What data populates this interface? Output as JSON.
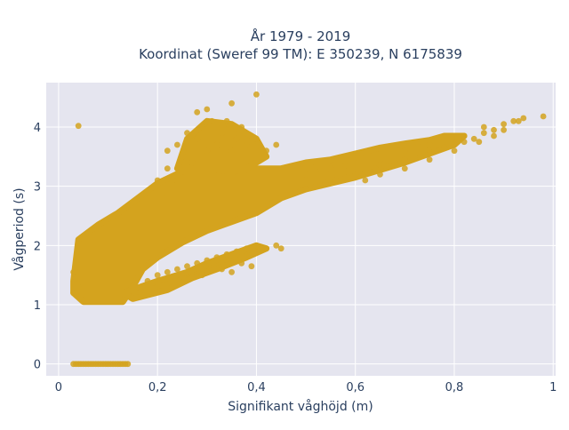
{
  "chart_data": {
    "type": "scatter",
    "title_line1": "År 1979 - 2019",
    "title_line2": "Koordinat (Sweref 99 TM): E 350239, N 6175839",
    "xlabel": "Signifikant våghöjd (m)",
    "ylabel": "Vågperiod (s)",
    "xlim": [
      -0.025,
      1.005
    ],
    "ylim": [
      -0.2,
      4.75
    ],
    "x_ticks": [
      0,
      0.2,
      0.4,
      0.6,
      0.8,
      1
    ],
    "x_tick_labels": [
      "0",
      "0,2",
      "0,4",
      "0,6",
      "0,8",
      "1"
    ],
    "y_ticks": [
      0,
      1,
      2,
      3,
      4
    ],
    "y_tick_labels": [
      "0",
      "1",
      "2",
      "3",
      "4"
    ],
    "grid": true,
    "colors": {
      "marker": "#d4a31e",
      "plot_bg": "#e5e5ef",
      "grid": "#ffffff",
      "text": "#2a3f5f"
    },
    "series": [
      {
        "points": [
          [
            0.03,
            0
          ],
          [
            0.035,
            0
          ],
          [
            0.04,
            0
          ],
          [
            0.045,
            0
          ],
          [
            0.05,
            0
          ],
          [
            0.055,
            0
          ],
          [
            0.06,
            0
          ],
          [
            0.065,
            0
          ],
          [
            0.07,
            0
          ],
          [
            0.075,
            0
          ],
          [
            0.08,
            0
          ],
          [
            0.085,
            0
          ],
          [
            0.09,
            0
          ],
          [
            0.095,
            0
          ],
          [
            0.1,
            0
          ],
          [
            0.105,
            0
          ],
          [
            0.11,
            0
          ],
          [
            0.115,
            0
          ],
          [
            0.12,
            0
          ],
          [
            0.125,
            0
          ],
          [
            0.13,
            0
          ],
          [
            0.135,
            0
          ],
          [
            0.14,
            0
          ],
          [
            0.04,
            4.02
          ],
          [
            0.03,
            1.55
          ],
          [
            0.03,
            1.2
          ],
          [
            0.035,
            1.45
          ],
          [
            0.04,
            1.3
          ],
          [
            0.22,
            3.6
          ],
          [
            0.24,
            3.7
          ],
          [
            0.25,
            3.5
          ],
          [
            0.26,
            3.9
          ],
          [
            0.27,
            3.4
          ],
          [
            0.28,
            3.8
          ],
          [
            0.29,
            4.0
          ],
          [
            0.3,
            3.6
          ],
          [
            0.31,
            4.1
          ],
          [
            0.32,
            3.7
          ],
          [
            0.33,
            3.9
          ],
          [
            0.34,
            4.1
          ],
          [
            0.35,
            3.6
          ],
          [
            0.36,
            3.8
          ],
          [
            0.37,
            4.0
          ],
          [
            0.38,
            3.7
          ],
          [
            0.4,
            3.8
          ],
          [
            0.42,
            3.6
          ],
          [
            0.44,
            3.7
          ],
          [
            0.3,
            4.3
          ],
          [
            0.35,
            4.4
          ],
          [
            0.4,
            4.55
          ],
          [
            0.28,
            4.25
          ],
          [
            0.2,
            3.1
          ],
          [
            0.22,
            3.3
          ],
          [
            0.21,
            2.8
          ],
          [
            0.23,
            3.1
          ],
          [
            0.15,
            1.3
          ],
          [
            0.18,
            1.4
          ],
          [
            0.2,
            1.5
          ],
          [
            0.22,
            1.55
          ],
          [
            0.24,
            1.6
          ],
          [
            0.26,
            1.65
          ],
          [
            0.28,
            1.7
          ],
          [
            0.3,
            1.75
          ],
          [
            0.32,
            1.8
          ],
          [
            0.34,
            1.85
          ],
          [
            0.36,
            1.9
          ],
          [
            0.38,
            1.95
          ],
          [
            0.4,
            2.0
          ],
          [
            0.42,
            1.95
          ],
          [
            0.44,
            2.0
          ],
          [
            0.3,
            1.55
          ],
          [
            0.33,
            1.6
          ],
          [
            0.37,
            1.7
          ],
          [
            0.35,
            1.55
          ],
          [
            0.39,
            1.65
          ],
          [
            0.29,
            1.5
          ],
          [
            0.45,
            1.95
          ],
          [
            0.44,
            2.8
          ],
          [
            0.46,
            2.85
          ],
          [
            0.48,
            2.9
          ],
          [
            0.5,
            2.95
          ],
          [
            0.52,
            3.0
          ],
          [
            0.54,
            3.05
          ],
          [
            0.56,
            3.1
          ],
          [
            0.58,
            3.15
          ],
          [
            0.6,
            3.2
          ],
          [
            0.62,
            3.25
          ],
          [
            0.64,
            3.3
          ],
          [
            0.66,
            3.35
          ],
          [
            0.68,
            3.4
          ],
          [
            0.7,
            3.45
          ],
          [
            0.72,
            3.5
          ],
          [
            0.74,
            3.55
          ],
          [
            0.76,
            3.6
          ],
          [
            0.78,
            3.65
          ],
          [
            0.8,
            3.7
          ],
          [
            0.82,
            3.75
          ],
          [
            0.84,
            3.8
          ],
          [
            0.86,
            3.9
          ],
          [
            0.88,
            3.95
          ],
          [
            0.9,
            4.05
          ],
          [
            0.92,
            4.1
          ],
          [
            0.94,
            4.15
          ],
          [
            0.98,
            4.18
          ],
          [
            0.62,
            3.1
          ],
          [
            0.65,
            3.2
          ],
          [
            0.7,
            3.3
          ],
          [
            0.75,
            3.45
          ],
          [
            0.8,
            3.6
          ],
          [
            0.85,
            3.75
          ],
          [
            0.88,
            3.85
          ],
          [
            0.9,
            3.95
          ],
          [
            0.93,
            4.1
          ],
          [
            0.7,
            3.6
          ],
          [
            0.75,
            3.7
          ],
          [
            0.6,
            3.4
          ],
          [
            0.55,
            3.3
          ],
          [
            0.5,
            3.2
          ],
          [
            0.52,
            3.25
          ],
          [
            0.58,
            3.35
          ],
          [
            0.65,
            3.45
          ],
          [
            0.82,
            3.85
          ],
          [
            0.86,
            4.0
          ]
        ]
      }
    ]
  }
}
